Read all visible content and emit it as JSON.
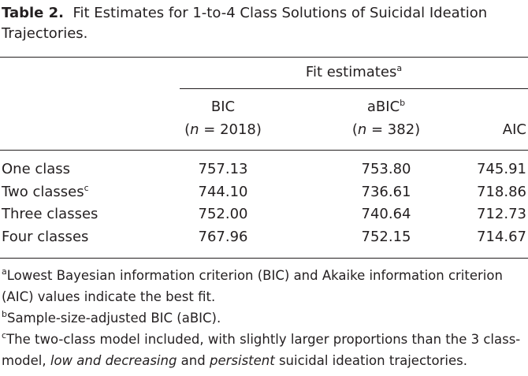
{
  "title": {
    "label": "Table 2.",
    "text": "Fit Estimates for 1-to-4 Class Solutions of Suicidal Ideation Trajectories."
  },
  "table": {
    "group_header": {
      "text": "Fit estimates",
      "note": "a"
    },
    "columns": [
      {
        "name": "BIC",
        "sub": [
          "(",
          "n",
          " = 2018)"
        ]
      },
      {
        "name": "aBIC",
        "note": "b",
        "sub": [
          "(",
          "n",
          " = 382)"
        ]
      },
      {
        "name": "AIC"
      }
    ],
    "rows": [
      {
        "label": "One class",
        "values": [
          "757.13",
          "753.80",
          "745.91"
        ]
      },
      {
        "label": "Two classes",
        "note": "c",
        "values": [
          "744.10",
          "736.61",
          "718.86"
        ]
      },
      {
        "label": "Three classes",
        "values": [
          "752.00",
          "740.64",
          "712.73"
        ]
      },
      {
        "label": "Four classes",
        "values": [
          "767.96",
          "752.15",
          "714.67"
        ]
      }
    ]
  },
  "footnotes": [
    {
      "mark": "a",
      "parts": [
        "Lowest Bayesian information criterion (BIC) and Akaike information criterion (AIC) values indicate the best fit."
      ]
    },
    {
      "mark": "b",
      "parts": [
        "Sample-size-adjusted BIC (aBIC)."
      ]
    },
    {
      "mark": "c",
      "parts": [
        "The two-class model included, with slightly larger proportions than the 3 class-model, ",
        "low and decreasing",
        " and ",
        "persistent",
        " suicidal ideation trajectories."
      ]
    }
  ]
}
